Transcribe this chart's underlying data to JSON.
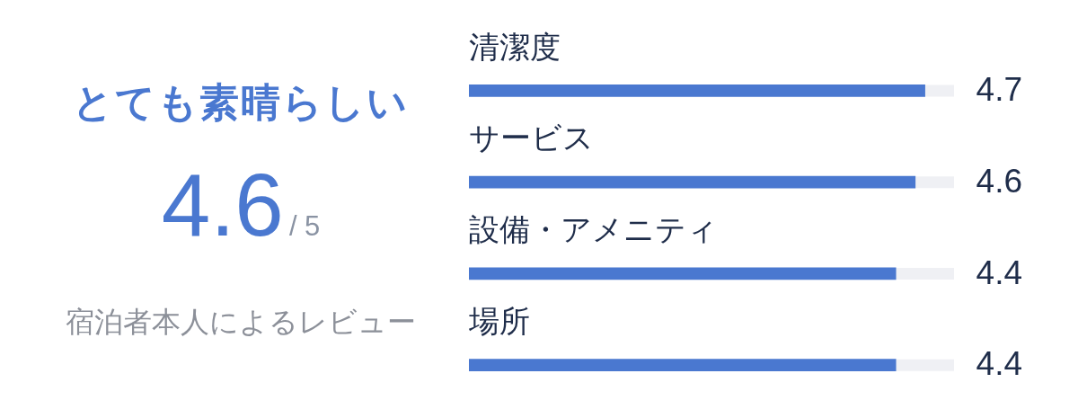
{
  "chart_data": [
    {
      "type": "other",
      "title": "とても素晴らしい",
      "annotations": [
        "4.6",
        "/ 5",
        "宿泊者本人によるレビュー"
      ]
    },
    {
      "type": "bar",
      "orientation": "horizontal",
      "categories": [
        "清潔度",
        "サービス",
        "設備・アメニティ",
        "場所"
      ],
      "values": [
        4.7,
        4.6,
        4.4,
        4.4
      ],
      "color": "#4a78d0",
      "xlim": [
        0,
        5
      ],
      "data_labels": true,
      "tick_labels": "y"
    }
  ]
}
